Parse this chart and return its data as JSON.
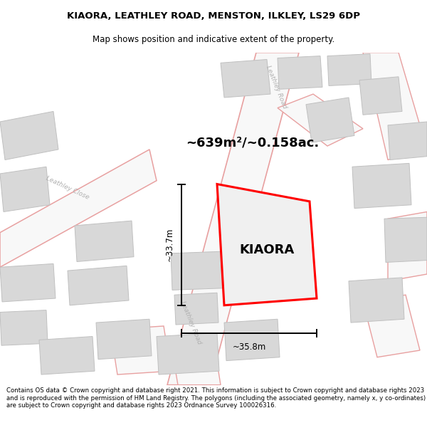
{
  "title_line1": "KIAORA, LEATHLEY ROAD, MENSTON, ILKLEY, LS29 6DP",
  "title_line2": "Map shows position and indicative extent of the property.",
  "area_label": "~639m²/~0.158ac.",
  "property_name": "KIAORA",
  "dim_vertical": "~33.7m",
  "dim_horizontal": "~35.8m",
  "footer_text": "Contains OS data © Crown copyright and database right 2021. This information is subject to Crown copyright and database rights 2023 and is reproduced with the permission of HM Land Registry. The polygons (including the associated geometry, namely x, y co-ordinates) are subject to Crown copyright and database rights 2023 Ordnance Survey 100026316.",
  "map_bg": "#ececec",
  "road_line_color": "#e8a0a0",
  "road_fill_color": "#f8f8f8",
  "building_fill": "#d8d8d8",
  "building_edge": "#c0c0c0",
  "property_outline_color": "#ff0000",
  "property_fill": "#f0f0f0",
  "dim_line_color": "#000000",
  "road_label_color": "#b0b0b0",
  "title_color": "#000000"
}
